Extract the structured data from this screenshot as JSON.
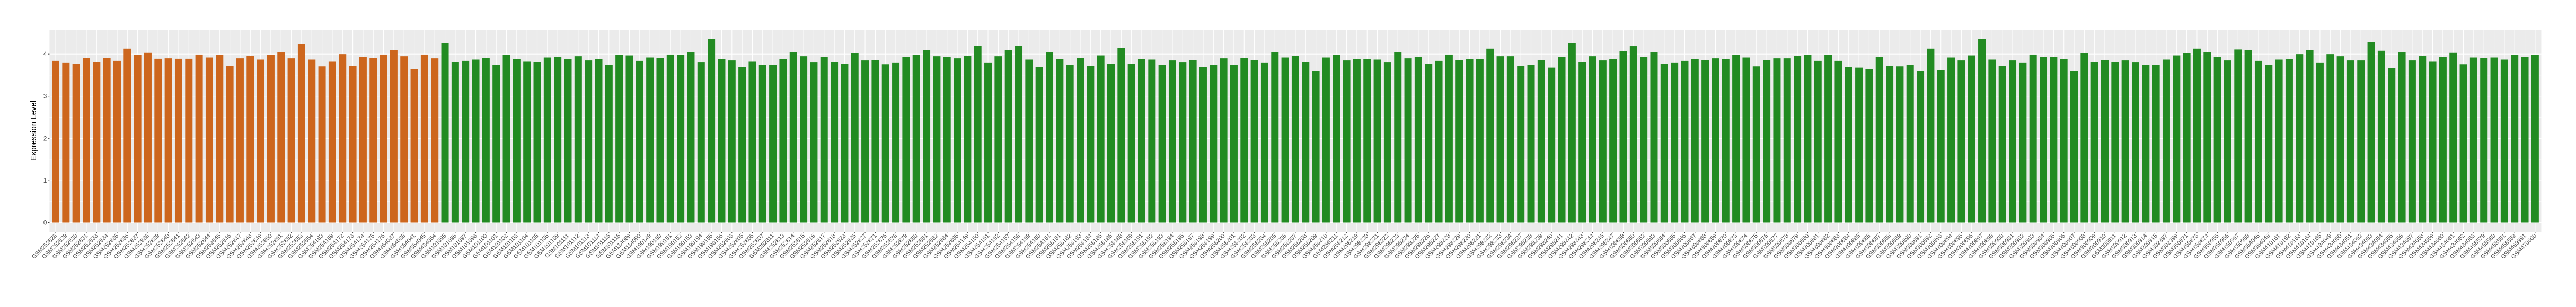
{
  "chart_data": {
    "type": "bar",
    "title": "",
    "xlabel": "",
    "ylabel": "Expression Level",
    "ylim": [
      -0.22,
      4.58
    ],
    "yticks": [
      0,
      1,
      2,
      3,
      4
    ],
    "grid": true,
    "legend": "none",
    "colors": {
      "orange": "#CD661D",
      "green": "#228B22",
      "panel": "#EBEBEB",
      "grid": "#FFFFFF"
    },
    "orange": {
      "categories": [
        "GSM252828",
        "GSM252829",
        "GSM252830",
        "GSM252831",
        "GSM252833",
        "GSM252834",
        "GSM252835",
        "GSM252836",
        "GSM252837",
        "GSM252838",
        "GSM252839",
        "GSM252840",
        "GSM252841",
        "GSM252842",
        "GSM252843",
        "GSM252844",
        "GSM252845",
        "GSM252846",
        "GSM252847",
        "GSM252848",
        "GSM252849",
        "GSM252850",
        "GSM252851",
        "GSM252852",
        "GSM252853",
        "GSM252854",
        "GSM254163",
        "GSM254169",
        "GSM254172",
        "GSM254173",
        "GSM254174",
        "GSM254175",
        "GSM254176",
        "GSM364037",
        "GSM364038",
        "GSM364041",
        "GSM364045",
        "GSM434064"
      ],
      "values": [
        3.84,
        3.79,
        3.77,
        3.91,
        3.81,
        3.91,
        3.84,
        4.13,
        3.98,
        4.03,
        3.89,
        3.9,
        3.89,
        3.89,
        3.99,
        3.92,
        3.98,
        3.72,
        3.9,
        3.96,
        3.87,
        3.98,
        4.04,
        3.9,
        4.23,
        3.87,
        3.71,
        3.82,
        4.0,
        3.72,
        3.93,
        3.91,
        3.99,
        4.1,
        3.95,
        3.64,
        3.99,
        3.9
      ]
    },
    "green": {
      "categories": [
        "GSM101095",
        "GSM101096",
        "GSM101097",
        "GSM101098",
        "GSM101100",
        "GSM101101",
        "GSM101102",
        "GSM101103",
        "GSM101104",
        "GSM101105",
        "GSM101106",
        "GSM101109",
        "GSM101111",
        "GSM101112",
        "GSM101113",
        "GSM101114",
        "GSM101115",
        "GSM101116",
        "GSM114089",
        "GSM114090",
        "GSM190149",
        "GSM190150",
        "GSM190151",
        "GSM190152",
        "GSM190153",
        "GSM190154",
        "GSM190155",
        "GSM190156",
        "GSM252803",
        "GSM252805",
        "GSM252806",
        "GSM252807",
        "GSM252811",
        "GSM252813",
        "GSM252814",
        "GSM252815",
        "GSM252816",
        "GSM252817",
        "GSM252818",
        "GSM252823",
        "GSM252825",
        "GSM252827",
        "GSM252871",
        "GSM252876",
        "GSM252878",
        "GSM252879",
        "GSM252880",
        "GSM252881",
        "GSM252882",
        "GSM252884",
        "GSM252885",
        "GSM254149",
        "GSM254150",
        "GSM254151",
        "GSM254152",
        "GSM254157",
        "GSM254158",
        "GSM254159",
        "GSM254160",
        "GSM254161",
        "GSM256181",
        "GSM256182",
        "GSM256183",
        "GSM256184",
        "GSM256185",
        "GSM256186",
        "GSM256188",
        "GSM256189",
        "GSM256191",
        "GSM256192",
        "GSM256193",
        "GSM256194",
        "GSM256195",
        "GSM256197",
        "GSM256198",
        "GSM256199",
        "GSM256200",
        "GSM256201",
        "GSM256202",
        "GSM256203",
        "GSM256204",
        "GSM256205",
        "GSM256206",
        "GSM256207",
        "GSM256208",
        "GSM256209",
        "GSM256210",
        "GSM256211",
        "GSM256212",
        "GSM298219",
        "GSM298220",
        "GSM298221",
        "GSM298222",
        "GSM298223",
        "GSM298224",
        "GSM298225",
        "GSM298226",
        "GSM298227",
        "GSM298228",
        "GSM298229",
        "GSM298230",
        "GSM298231",
        "GSM298232",
        "GSM298233",
        "GSM298234",
        "GSM298237",
        "GSM298238",
        "GSM298239",
        "GSM298240",
        "GSM298241",
        "GSM298242",
        "GSM298243",
        "GSM298244",
        "GSM298245",
        "GSM298247",
        "GSM300859",
        "GSM300860",
        "GSM300862",
        "GSM300863",
        "GSM300864",
        "GSM300865",
        "GSM300866",
        "GSM300867",
        "GSM300868",
        "GSM300869",
        "GSM300870",
        "GSM300873",
        "GSM300874",
        "GSM300875",
        "GSM300876",
        "GSM300877",
        "GSM300878",
        "GSM300879",
        "GSM300880",
        "GSM300881",
        "GSM300882",
        "GSM300883",
        "GSM300884",
        "GSM300885",
        "GSM300886",
        "GSM300887",
        "GSM300888",
        "GSM300889",
        "GSM300890",
        "GSM300891",
        "GSM300892",
        "GSM300893",
        "GSM300894",
        "GSM300895",
        "GSM300896",
        "GSM300897",
        "GSM300898",
        "GSM300900",
        "GSM300901",
        "GSM300902",
        "GSM300903",
        "GSM300904",
        "GSM300905",
        "GSM300906",
        "GSM300907",
        "GSM300908",
        "GSM300909",
        "GSM300910",
        "GSM300911",
        "GSM300912",
        "GSM300913",
        "GSM300914",
        "GSM300915",
        "GSM302397",
        "GSM302399",
        "GSM350871",
        "GSM350873",
        "GSM350874",
        "GSM350955",
        "GSM350956",
        "GSM350957",
        "GSM350958",
        "GSM364046",
        "GSM364048",
        "GSM410161",
        "GSM410162",
        "GSM410163",
        "GSM410164",
        "GSM410165",
        "GSM434049",
        "GSM434050",
        "GSM434051",
        "GSM434052",
        "GSM434053",
        "GSM434054",
        "GSM434055",
        "GSM434056",
        "GSM434057",
        "GSM434058",
        "GSM434059",
        "GSM434060",
        "GSM434061",
        "GSM434062",
        "GSM434063",
        "GSM458579",
        "GSM458580",
        "GSM458581",
        "GSM458582",
        "GSM469991",
        "GSM470000"
      ],
      "values": [
        4.26,
        3.81,
        3.84,
        3.87,
        3.91,
        3.75,
        3.98,
        3.88,
        3.82,
        3.81,
        3.92,
        3.93,
        3.88,
        3.95,
        3.85,
        3.88,
        3.75,
        3.98,
        3.97,
        3.84,
        3.92,
        3.91,
        3.99,
        3.98,
        4.04,
        3.8,
        4.36,
        3.88,
        3.85,
        3.69,
        3.82,
        3.75,
        3.74,
        3.88,
        4.05,
        3.95,
        3.8,
        3.93,
        3.81,
        3.77,
        4.02,
        3.85,
        3.86,
        3.76,
        3.79,
        3.93,
        3.98,
        4.09,
        3.95,
        3.93,
        3.9,
        3.96,
        4.2,
        3.79,
        3.95,
        4.09,
        4.2,
        3.87,
        3.7,
        4.05,
        3.88,
        3.75,
        3.91,
        3.72,
        3.97,
        3.77,
        4.15,
        3.77,
        3.88,
        3.87,
        3.74,
        3.85,
        3.8,
        3.86,
        3.69,
        3.75,
        3.9,
        3.75,
        3.91,
        3.86,
        3.79,
        4.05,
        3.92,
        3.96,
        3.81,
        3.6,
        3.92,
        3.98,
        3.85,
        3.88,
        3.88,
        3.87,
        3.8,
        4.04,
        3.9,
        3.93,
        3.77,
        3.84,
        3.99,
        3.86,
        3.88,
        3.88,
        4.13,
        3.95,
        3.95,
        3.72,
        3.74,
        3.86,
        3.68,
        3.93,
        4.26,
        3.81,
        3.95,
        3.85,
        3.88,
        4.07,
        4.19,
        3.93,
        4.04,
        3.77,
        3.79,
        3.84,
        3.88,
        3.86,
        3.9,
        3.88,
        3.98,
        3.92,
        3.71,
        3.86,
        3.9,
        3.9,
        3.96,
        3.98,
        3.84,
        3.98,
        3.84,
        3.69,
        3.68,
        3.64,
        3.93,
        3.72,
        3.71,
        3.74,
        3.59,
        4.13,
        3.62,
        3.92,
        3.85,
        3.97,
        4.36,
        3.87,
        3.72,
        3.85,
        3.79,
        3.99,
        3.93,
        3.93,
        3.88,
        3.59,
        4.02,
        3.81,
        3.86,
        3.81,
        3.85,
        3.8,
        3.74,
        3.75,
        3.87,
        3.97,
        4.02,
        4.13,
        4.05,
        3.93,
        3.85,
        4.11,
        4.09,
        3.84,
        3.75,
        3.87,
        3.88,
        4.0,
        4.09,
        3.79,
        4.0,
        3.95,
        3.85,
        3.85,
        4.28,
        4.08,
        3.67,
        4.05,
        3.85,
        3.96,
        3.82,
        3.93,
        4.03,
        3.76,
        3.92,
        3.91,
        3.92,
        3.87,
        3.98,
        3.93,
        3.98
      ]
    }
  }
}
